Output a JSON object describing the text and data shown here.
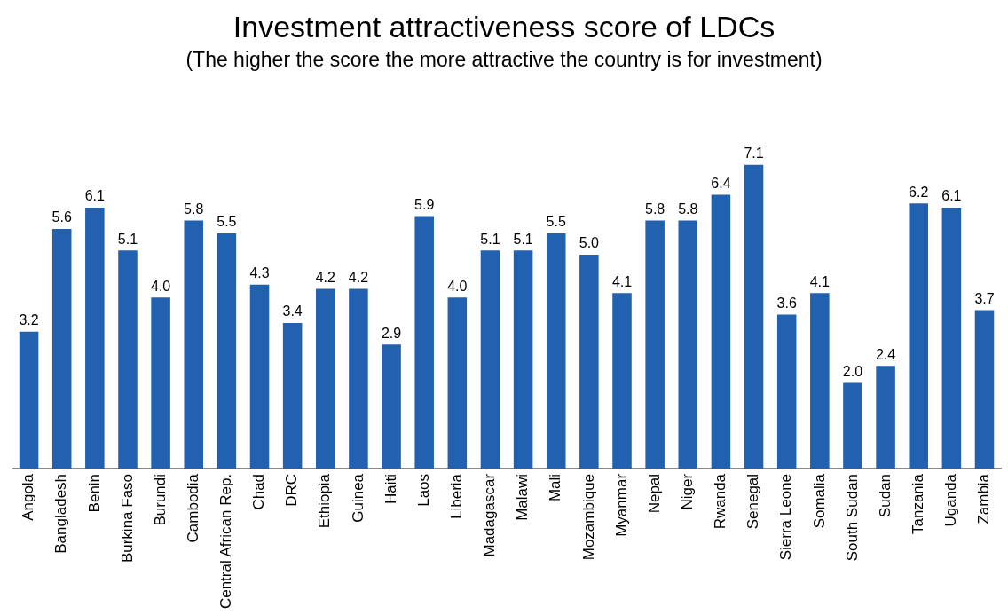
{
  "chart_data": {
    "type": "bar",
    "title": "Investment attractiveness score of LDCs",
    "subtitle": "(The higher the score the more attractive the country is for investment)",
    "categories": [
      "Angola",
      "Bangladesh",
      "Benin",
      "Burkina Faso",
      "Burundi",
      "Cambodia",
      "Central African Rep.",
      "Chad",
      "DRC",
      "Ethiopia",
      "Guinea",
      "Haiti",
      "Laos",
      "Liberia",
      "Madagascar",
      "Malawi",
      "Mali",
      "Mozambique",
      "Myanmar",
      "Nepal",
      "Niger",
      "Rwanda",
      "Senegal",
      "Sierra Leone",
      "Somalia",
      "South Sudan",
      "Sudan",
      "Tanzania",
      "Uganda",
      "Zambia"
    ],
    "values": [
      3.2,
      5.6,
      6.1,
      5.1,
      4.0,
      5.8,
      5.5,
      4.3,
      3.4,
      4.2,
      4.2,
      2.9,
      5.9,
      4.0,
      5.1,
      5.1,
      5.5,
      5.0,
      4.1,
      5.8,
      5.8,
      6.4,
      7.1,
      3.6,
      4.1,
      2.0,
      2.4,
      6.2,
      6.1,
      3.7
    ],
    "value_labels": [
      "3.2",
      "5.6",
      "6.1",
      "5.1",
      "4.0",
      "5.8",
      "5.5",
      "4.3",
      "3.4",
      "4.2",
      "4.2",
      "2.9",
      "5.9",
      "4.0",
      "5.1",
      "5.1",
      "5.5",
      "5.0",
      "4.1",
      "5.8",
      "5.8",
      "6.4",
      "7.1",
      "3.6",
      "4.1",
      "2.0",
      "2.4",
      "6.2",
      "6.1",
      "3.7"
    ],
    "color": "#2260b0",
    "relative": false,
    "grid": false,
    "legend": false
  }
}
